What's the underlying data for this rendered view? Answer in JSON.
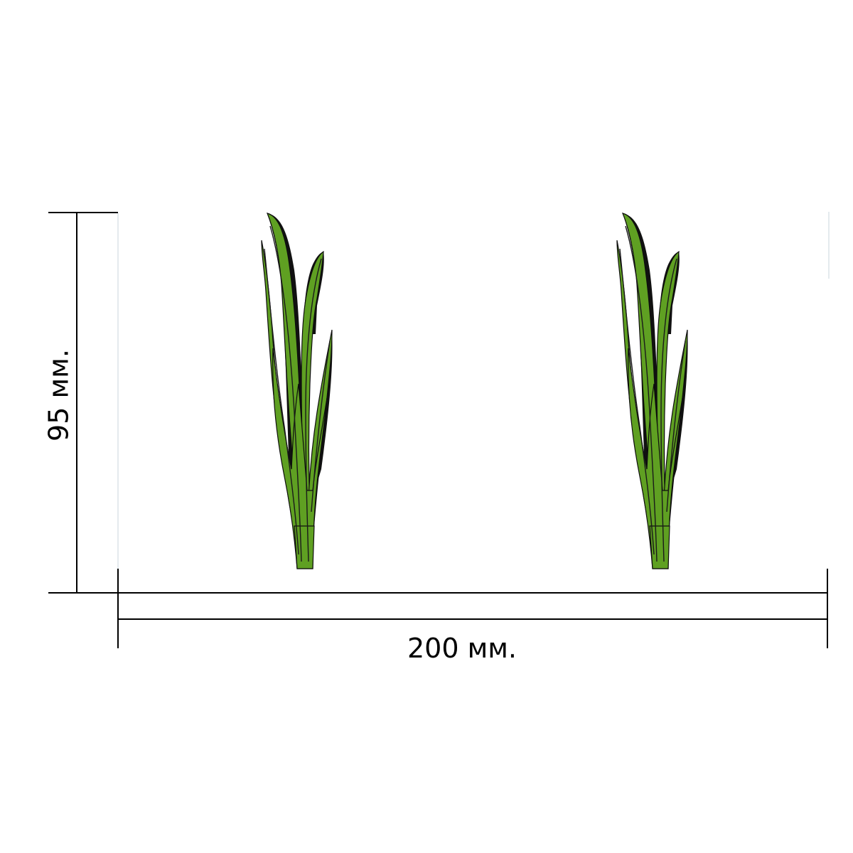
{
  "dimensions": {
    "height_label": "95 мм.",
    "width_label": "200 мм."
  },
  "colors": {
    "leaf": "#5fa022",
    "outline": "#111111",
    "dimension_lines": "#000000"
  },
  "plants": [
    {
      "name": "grass-plant-left",
      "icon": "grass-icon"
    },
    {
      "name": "grass-plant-right",
      "icon": "grass-icon"
    }
  ]
}
